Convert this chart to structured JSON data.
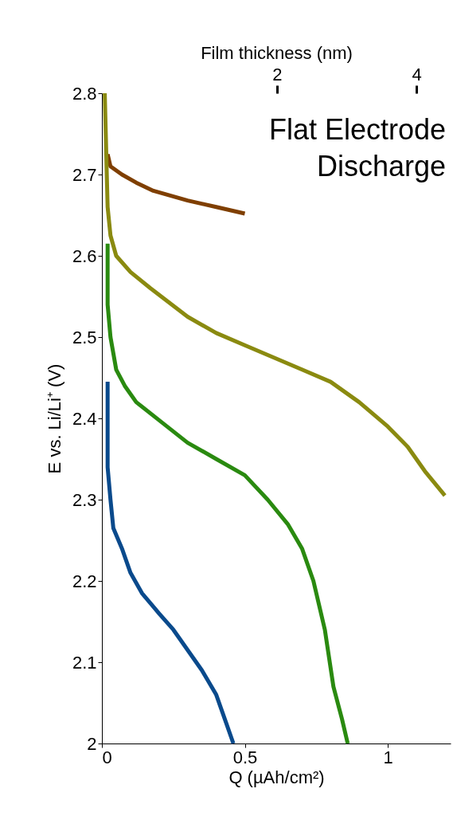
{
  "chart_data": {
    "type": "line",
    "xlabel": "Q (µAh/cm²)",
    "ylabel": "E vs. Li/Li⁺ (V)",
    "x2label": "Film thickness (nm)",
    "xlim": [
      0,
      1.22
    ],
    "xticks": [
      0,
      0.5,
      1
    ],
    "ylim": [
      2,
      2.8
    ],
    "yticks": [
      2,
      2.1,
      2.2,
      2.3,
      2.4,
      2.5,
      2.6,
      2.7,
      2.8
    ],
    "x2lim": [
      -0.51,
      4.49
    ],
    "x2ticks": [
      2,
      4
    ],
    "grid": false,
    "legend": false,
    "marker": "none",
    "line_style": "solid",
    "annotations": [
      "Flat Electrode Discharge"
    ],
    "series": [
      {
        "color": "#7f3f00",
        "x": [
          0.02,
          0.03,
          0.07,
          0.12,
          0.18,
          0.3,
          0.4,
          0.5
        ],
        "values": [
          2.725,
          2.71,
          2.7,
          2.69,
          2.68,
          2.668,
          2.66,
          2.652
        ]
      },
      {
        "color": "#8a8a10",
        "x": [
          0.01,
          0.02,
          0.03,
          0.05,
          0.1,
          0.17,
          0.3,
          0.4,
          0.5,
          0.6,
          0.7,
          0.8,
          0.9,
          1.0,
          1.07,
          1.13,
          1.2
        ],
        "values": [
          2.8,
          2.66,
          2.625,
          2.6,
          2.58,
          2.56,
          2.525,
          2.505,
          2.49,
          2.475,
          2.46,
          2.445,
          2.42,
          2.39,
          2.365,
          2.335,
          2.305
        ]
      },
      {
        "color": "#2a8a10",
        "x": [
          0.02,
          0.02,
          0.03,
          0.05,
          0.08,
          0.12,
          0.21,
          0.3,
          0.4,
          0.5,
          0.58,
          0.65,
          0.7,
          0.74,
          0.78,
          0.81,
          0.84,
          0.86
        ],
        "values": [
          2.615,
          2.54,
          2.5,
          2.46,
          2.44,
          2.42,
          2.395,
          2.37,
          2.35,
          2.33,
          2.3,
          2.27,
          2.24,
          2.2,
          2.14,
          2.07,
          2.03,
          2.0
        ]
      },
      {
        "color": "#0a4a8c",
        "x": [
          0.02,
          0.02,
          0.03,
          0.04,
          0.07,
          0.1,
          0.14,
          0.2,
          0.25,
          0.3,
          0.35,
          0.4,
          0.43,
          0.46
        ],
        "values": [
          2.445,
          2.34,
          2.3,
          2.265,
          2.24,
          2.21,
          2.185,
          2.16,
          2.14,
          2.115,
          2.09,
          2.06,
          2.03,
          2.0
        ]
      }
    ]
  }
}
